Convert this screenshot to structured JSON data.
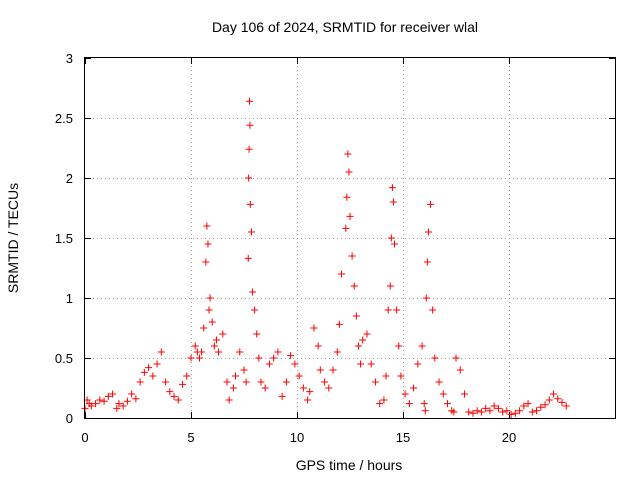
{
  "chart_data": {
    "type": "scatter",
    "title": "Day 106 of 2024, SRMTID for receiver wlal",
    "xlabel": "GPS time / hours",
    "ylabel": "SRMTID / TECUs",
    "xlim": [
      0,
      25
    ],
    "ylim": [
      0,
      3
    ],
    "xticks": [
      0,
      5,
      10,
      15,
      20
    ],
    "xtick_labels": [
      "0",
      "5",
      "10",
      "15",
      "20"
    ],
    "yticks": [
      0,
      0.5,
      1,
      1.5,
      2,
      2.5,
      3
    ],
    "ytick_labels": [
      "0",
      "0.5",
      "1",
      "1.5",
      "2",
      "2.5",
      "3"
    ],
    "grid": true,
    "marker": "+",
    "series": [
      {
        "name": "SRMTID",
        "color": "#ff0000",
        "x": [
          0.0,
          0.1,
          0.2,
          0.3,
          0.5,
          0.7,
          0.9,
          1.1,
          1.3,
          1.5,
          1.6,
          1.8,
          2.0,
          2.2,
          2.4,
          2.6,
          2.8,
          3.0,
          3.2,
          3.4,
          3.6,
          3.8,
          4.0,
          4.2,
          4.4,
          4.6,
          4.8,
          5.0,
          5.2,
          5.3,
          5.4,
          5.5,
          5.6,
          5.7,
          5.75,
          5.8,
          5.85,
          5.9,
          6.0,
          6.1,
          6.2,
          6.3,
          6.5,
          6.7,
          6.8,
          7.0,
          7.1,
          7.3,
          7.5,
          7.6,
          7.7,
          7.72,
          7.74,
          7.76,
          7.78,
          7.8,
          7.85,
          7.9,
          8.0,
          8.1,
          8.2,
          8.3,
          8.5,
          8.7,
          8.9,
          9.1,
          9.3,
          9.5,
          9.7,
          9.9,
          10.1,
          10.3,
          10.5,
          10.6,
          10.8,
          11.0,
          11.1,
          11.3,
          11.5,
          11.7,
          11.9,
          12.0,
          12.1,
          12.3,
          12.35,
          12.4,
          12.45,
          12.5,
          12.6,
          12.7,
          12.8,
          12.9,
          13.0,
          13.1,
          13.3,
          13.5,
          13.7,
          13.9,
          14.1,
          14.2,
          14.3,
          14.4,
          14.45,
          14.5,
          14.55,
          14.6,
          14.7,
          14.8,
          14.9,
          15.1,
          15.3,
          15.5,
          15.7,
          15.9,
          16.0,
          16.05,
          16.1,
          16.15,
          16.2,
          16.3,
          16.4,
          16.5,
          16.7,
          16.9,
          17.1,
          17.3,
          17.4,
          17.5,
          17.7,
          17.9,
          18.1,
          18.3,
          18.5,
          18.7,
          18.9,
          19.1,
          19.3,
          19.5,
          19.7,
          19.9,
          20.1,
          20.3,
          20.5,
          20.7,
          20.9,
          21.1,
          21.3,
          21.5,
          21.7,
          21.9,
          22.1,
          22.3,
          22.5,
          22.7
        ],
        "values": [
          0.08,
          0.15,
          0.12,
          0.1,
          0.12,
          0.15,
          0.14,
          0.18,
          0.2,
          0.08,
          0.12,
          0.1,
          0.14,
          0.2,
          0.16,
          0.3,
          0.38,
          0.42,
          0.35,
          0.45,
          0.55,
          0.3,
          0.22,
          0.18,
          0.15,
          0.28,
          0.35,
          0.5,
          0.6,
          0.55,
          0.5,
          0.55,
          0.75,
          1.3,
          1.6,
          1.45,
          0.9,
          1.0,
          0.8,
          0.6,
          0.65,
          0.55,
          0.7,
          0.3,
          0.15,
          0.25,
          0.35,
          0.55,
          0.4,
          0.3,
          1.33,
          2.0,
          2.24,
          2.64,
          2.44,
          1.78,
          1.55,
          1.05,
          0.9,
          0.7,
          0.5,
          0.3,
          0.25,
          0.45,
          0.5,
          0.55,
          0.18,
          0.3,
          0.52,
          0.45,
          0.35,
          0.25,
          0.15,
          0.22,
          0.75,
          0.6,
          0.4,
          0.3,
          0.25,
          0.4,
          0.55,
          0.78,
          1.2,
          1.58,
          1.84,
          2.2,
          2.05,
          1.68,
          1.35,
          1.1,
          0.85,
          0.6,
          0.45,
          0.65,
          0.7,
          0.45,
          0.3,
          0.12,
          0.15,
          0.35,
          0.9,
          1.1,
          1.5,
          1.92,
          1.8,
          1.45,
          0.9,
          0.6,
          0.35,
          0.2,
          0.12,
          0.25,
          0.45,
          0.6,
          0.12,
          0.06,
          1.0,
          1.3,
          1.55,
          1.78,
          0.9,
          0.5,
          0.3,
          0.2,
          0.12,
          0.06,
          0.05,
          0.5,
          0.4,
          0.2,
          0.05,
          0.04,
          0.06,
          0.05,
          0.08,
          0.06,
          0.1,
          0.08,
          0.05,
          0.06,
          0.03,
          0.04,
          0.06,
          0.1,
          0.12,
          0.05,
          0.06,
          0.09,
          0.11,
          0.15,
          0.2,
          0.16,
          0.13,
          0.1
        ]
      }
    ]
  }
}
